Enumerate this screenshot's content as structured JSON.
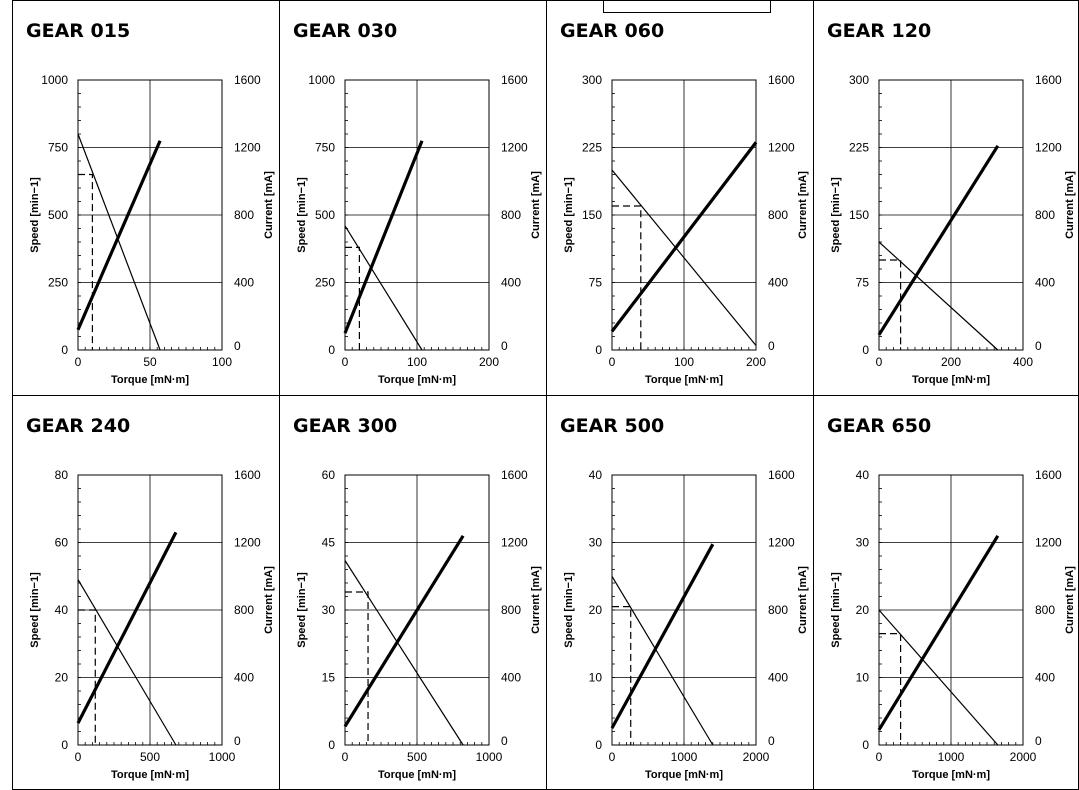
{
  "chart_data": [
    {
      "type": "line",
      "title": "GEAR 015",
      "xlabel": "Torque [mN·m]",
      "ylabel_left": "Speed [min−1]",
      "ylabel_right": "Current [mA]",
      "xlim": [
        0,
        100
      ],
      "ylim_left": [
        0,
        1000
      ],
      "ylim_right": [
        0,
        1600
      ],
      "x_ticks": [
        "0",
        "50",
        "100"
      ],
      "y_ticks_left": [
        "0",
        "250",
        "500",
        "750",
        "1000"
      ],
      "y_ticks_right": [
        "0",
        "400",
        "800",
        "1200",
        "1600"
      ],
      "series": [
        {
          "axis": "left",
          "style": "thin",
          "x": [
            0,
            57
          ],
          "y": [
            800,
            0
          ]
        },
        {
          "axis": "right",
          "style": "thick",
          "x": [
            0,
            57
          ],
          "y": [
            120,
            1240
          ]
        }
      ],
      "rated_point": {
        "torque": 10,
        "speed": 650
      }
    },
    {
      "type": "line",
      "title": "GEAR 030",
      "xlabel": "Torque [mN·m]",
      "ylabel_left": "Speed [min−1]",
      "ylabel_right": "Current [mA]",
      "xlim": [
        0,
        200
      ],
      "ylim_left": [
        0,
        1000
      ],
      "ylim_right": [
        0,
        1600
      ],
      "x_ticks": [
        "0",
        "100",
        "200"
      ],
      "y_ticks_left": [
        "0",
        "250",
        "500",
        "750",
        "1000"
      ],
      "y_ticks_right": [
        "0",
        "400",
        "800",
        "1200",
        "1600"
      ],
      "series": [
        {
          "axis": "left",
          "style": "thin",
          "x": [
            0,
            107
          ],
          "y": [
            460,
            0
          ]
        },
        {
          "axis": "right",
          "style": "thick",
          "x": [
            0,
            107
          ],
          "y": [
            100,
            1240
          ]
        }
      ],
      "rated_point": {
        "torque": 20,
        "speed": 380
      }
    },
    {
      "type": "line",
      "title": "GEAR 060",
      "xlabel": "Torque [mN·m]",
      "ylabel_left": "Speed [min−1]",
      "ylabel_right": "Current [mA]",
      "xlim": [
        0,
        200
      ],
      "ylim_left": [
        0,
        300
      ],
      "ylim_right": [
        0,
        1600
      ],
      "x_ticks": [
        "0",
        "100",
        "200"
      ],
      "y_ticks_left": [
        "0",
        "75",
        "150",
        "225",
        "300"
      ],
      "y_ticks_right": [
        "0",
        "400",
        "800",
        "1200",
        "1600"
      ],
      "series": [
        {
          "axis": "left",
          "style": "thin",
          "x": [
            0,
            200
          ],
          "y": [
            200,
            5
          ]
        },
        {
          "axis": "right",
          "style": "thick",
          "x": [
            0,
            200
          ],
          "y": [
            110,
            1230
          ]
        }
      ],
      "rated_point": {
        "torque": 40,
        "speed": 160
      }
    },
    {
      "type": "line",
      "title": "GEAR 120",
      "xlabel": "Torque [mN·m]",
      "ylabel_left": "Speed [min−1]",
      "ylabel_right": "Current [mA]",
      "xlim": [
        0,
        400
      ],
      "ylim_left": [
        0,
        300
      ],
      "ylim_right": [
        0,
        1600
      ],
      "x_ticks": [
        "0",
        "200",
        "400"
      ],
      "y_ticks_left": [
        "0",
        "75",
        "150",
        "225",
        "300"
      ],
      "y_ticks_right": [
        "0",
        "400",
        "800",
        "1200",
        "1600"
      ],
      "series": [
        {
          "axis": "left",
          "style": "thin",
          "x": [
            0,
            330
          ],
          "y": [
            120,
            0
          ]
        },
        {
          "axis": "right",
          "style": "thick",
          "x": [
            0,
            330
          ],
          "y": [
            90,
            1210
          ]
        }
      ],
      "rated_point": {
        "torque": 60,
        "speed": 100
      }
    },
    {
      "type": "line",
      "title": "GEAR 240",
      "xlabel": "Torque [mN·m]",
      "ylabel_left": "Speed [min−1]",
      "ylabel_right": "Current [mA]",
      "xlim": [
        0,
        1000
      ],
      "ylim_left": [
        0,
        80
      ],
      "ylim_right": [
        0,
        1600
      ],
      "x_ticks": [
        "0",
        "500",
        "1000"
      ],
      "y_ticks_left": [
        "0",
        "20",
        "40",
        "60",
        "80"
      ],
      "y_ticks_right": [
        "0",
        "400",
        "800",
        "1200",
        "1600"
      ],
      "series": [
        {
          "axis": "left",
          "style": "thin",
          "x": [
            0,
            680
          ],
          "y": [
            49,
            0
          ]
        },
        {
          "axis": "right",
          "style": "thick",
          "x": [
            0,
            680
          ],
          "y": [
            130,
            1260
          ]
        }
      ],
      "rated_point": {
        "torque": 120,
        "speed": 40
      }
    },
    {
      "type": "line",
      "title": "GEAR 300",
      "xlabel": "Torque [mN·m]",
      "ylabel_left": "Speed [min−1]",
      "ylabel_right": "Current [mA]",
      "xlim": [
        0,
        1000
      ],
      "ylim_left": [
        0,
        60
      ],
      "ylim_right": [
        0,
        1600
      ],
      "x_ticks": [
        "0",
        "500",
        "1000"
      ],
      "y_ticks_left": [
        "0",
        "15",
        "30",
        "45",
        "60"
      ],
      "y_ticks_right": [
        "0",
        "400",
        "800",
        "1200",
        "1600"
      ],
      "series": [
        {
          "axis": "left",
          "style": "thin",
          "x": [
            0,
            820
          ],
          "y": [
            41,
            0
          ]
        },
        {
          "axis": "right",
          "style": "thick",
          "x": [
            0,
            820
          ],
          "y": [
            110,
            1240
          ]
        }
      ],
      "rated_point": {
        "torque": 160,
        "speed": 34
      }
    },
    {
      "type": "line",
      "title": "GEAR 500",
      "xlabel": "Torque [mN·m]",
      "ylabel_left": "Speed [min−1]",
      "ylabel_right": "Current [mA]",
      "xlim": [
        0,
        2000
      ],
      "ylim_left": [
        0,
        40
      ],
      "ylim_right": [
        0,
        1600
      ],
      "x_ticks": [
        "0",
        "1000",
        "2000"
      ],
      "y_ticks_left": [
        "0",
        "10",
        "20",
        "30",
        "40"
      ],
      "y_ticks_right": [
        "0",
        "400",
        "800",
        "1200",
        "1600"
      ],
      "series": [
        {
          "axis": "left",
          "style": "thin",
          "x": [
            0,
            1400
          ],
          "y": [
            25,
            0
          ]
        },
        {
          "axis": "right",
          "style": "thick",
          "x": [
            0,
            1400
          ],
          "y": [
            100,
            1190
          ]
        }
      ],
      "rated_point": {
        "torque": 260,
        "speed": 20.5
      }
    },
    {
      "type": "line",
      "title": "GEAR 650",
      "xlabel": "Torque [mN·m]",
      "ylabel_left": "Speed [min−1]",
      "ylabel_right": "Current [mA]",
      "xlim": [
        0,
        2000
      ],
      "ylim_left": [
        0,
        40
      ],
      "ylim_right": [
        0,
        1600
      ],
      "x_ticks": [
        "0",
        "1000",
        "2000"
      ],
      "y_ticks_left": [
        "0",
        "10",
        "20",
        "30",
        "40"
      ],
      "y_ticks_right": [
        "0",
        "400",
        "800",
        "1200",
        "1600"
      ],
      "series": [
        {
          "axis": "left",
          "style": "thin",
          "x": [
            0,
            1650
          ],
          "y": [
            20,
            0
          ]
        },
        {
          "axis": "right",
          "style": "thick",
          "x": [
            0,
            1650
          ],
          "y": [
            90,
            1240
          ]
        }
      ],
      "rated_point": {
        "torque": 300,
        "speed": 16.5
      }
    }
  ]
}
